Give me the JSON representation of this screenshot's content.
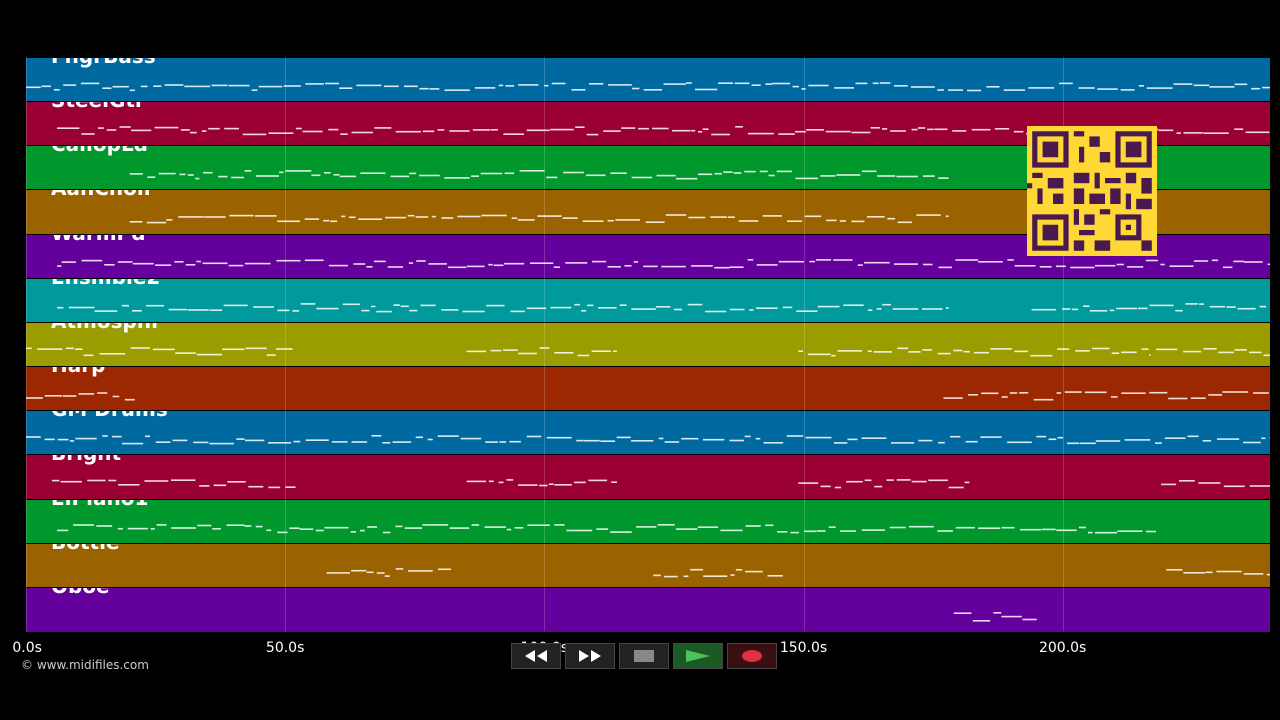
{
  "tracks": [
    {
      "name": "FngrBass",
      "color": "#006aa0"
    },
    {
      "name": "SteelGtr",
      "color": "#9b0035"
    },
    {
      "name": "CaliopLd",
      "color": "#00982d"
    },
    {
      "name": "AahChoir",
      "color": "#9b6300"
    },
    {
      "name": "WarmPd",
      "color": "#64009b"
    },
    {
      "name": "Ensmble2",
      "color": "#00999c"
    },
    {
      "name": "Atmosphr",
      "color": "#9b9c00"
    },
    {
      "name": "Harp",
      "color": "#9b2800"
    },
    {
      "name": "GM Drums",
      "color": "#006aa0"
    },
    {
      "name": "Bright",
      "color": "#9b0035"
    },
    {
      "name": "ElPiano1",
      "color": "#00982d"
    },
    {
      "name": "Bottle",
      "color": "#9b6300"
    },
    {
      "name": "Oboe",
      "color": "#64009b"
    }
  ],
  "time_axis": {
    "max_seconds": 240,
    "ticks": [
      {
        "value": 0,
        "label": "0.0s"
      },
      {
        "value": 50,
        "label": "50.0s"
      },
      {
        "value": 100,
        "label": "100.0s"
      },
      {
        "value": 150,
        "label": "150.0s"
      },
      {
        "value": 200,
        "label": "200.0s"
      }
    ]
  },
  "note_activity": [
    [
      [
        0,
        240
      ]
    ],
    [
      [
        6,
        240
      ]
    ],
    [
      [
        20,
        178
      ]
    ],
    [
      [
        20,
        178
      ]
    ],
    [
      [
        6,
        240
      ]
    ],
    [
      [
        6,
        178
      ],
      [
        194,
        240
      ]
    ],
    [
      [
        0,
        52
      ],
      [
        85,
        114
      ],
      [
        149,
        217
      ],
      [
        218,
        240
      ]
    ],
    [
      [
        0,
        21
      ],
      [
        177,
        240
      ]
    ],
    [
      [
        0,
        240
      ]
    ],
    [
      [
        5,
        52
      ],
      [
        85,
        114
      ],
      [
        149,
        182
      ],
      [
        219,
        240
      ]
    ],
    [
      [
        6,
        218
      ]
    ],
    [
      [
        58,
        82
      ],
      [
        121,
        146
      ],
      [
        220,
        240
      ]
    ],
    [
      [
        179,
        195
      ]
    ]
  ],
  "credit": "© www.midifiles.com",
  "transport": {
    "rewind": "rewind-icon",
    "fast_forward": "fast-forward-icon",
    "stop": "stop-icon",
    "play": "play-icon",
    "record": "record-icon"
  }
}
